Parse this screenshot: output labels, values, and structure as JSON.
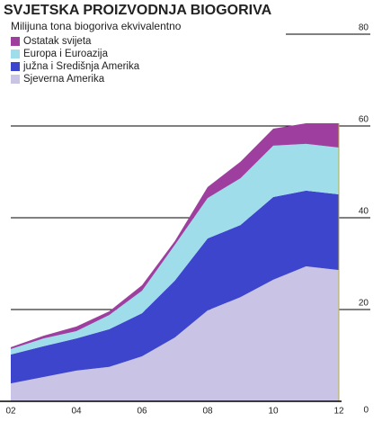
{
  "chart_data": {
    "type": "stacked_area",
    "title": "SVJETSKA PROIZVODNJA BIOGORIVA",
    "subtitle": "Milijuna tona biogoriva ekvivalentno",
    "x": [
      2,
      3,
      4,
      5,
      6,
      7,
      8,
      9,
      10,
      11,
      12
    ],
    "xlim": [
      2,
      12
    ],
    "xticks": [
      {
        "value": 2,
        "label": "02"
      },
      {
        "value": 4,
        "label": "04"
      },
      {
        "value": 6,
        "label": "06"
      },
      {
        "value": 8,
        "label": "08"
      },
      10,
      12
    ],
    "ylim": [
      0,
      80
    ],
    "yticks": [
      0,
      20,
      40,
      60,
      80
    ],
    "grid": true,
    "legend": "top-left",
    "series": [
      {
        "name": "Sjeverna Amerika",
        "color": "#c9c3e6",
        "values": [
          3.9,
          5.3,
          6.7,
          7.5,
          9.8,
          13.9,
          19.8,
          22.7,
          26.5,
          29.4,
          28.6
        ]
      },
      {
        "name": "južna i Središnja Amerika",
        "color": "#3d45cc",
        "values": [
          6.3,
          6.7,
          7.0,
          8.2,
          9.4,
          12.4,
          15.7,
          15.7,
          18.0,
          16.5,
          16.5
        ]
      },
      {
        "name": "Europa i Euroazija",
        "color": "#9edde9",
        "values": [
          1.2,
          1.7,
          1.6,
          3.1,
          4.9,
          7.8,
          8.8,
          10.2,
          11.2,
          10.2,
          10.2
        ]
      },
      {
        "name": "Ostatak svijeta",
        "color": "#9e3fa0",
        "values": [
          0.4,
          0.6,
          1.0,
          0.8,
          1.2,
          0.8,
          2.4,
          3.6,
          3.7,
          4.5,
          5.3
        ]
      }
    ]
  }
}
